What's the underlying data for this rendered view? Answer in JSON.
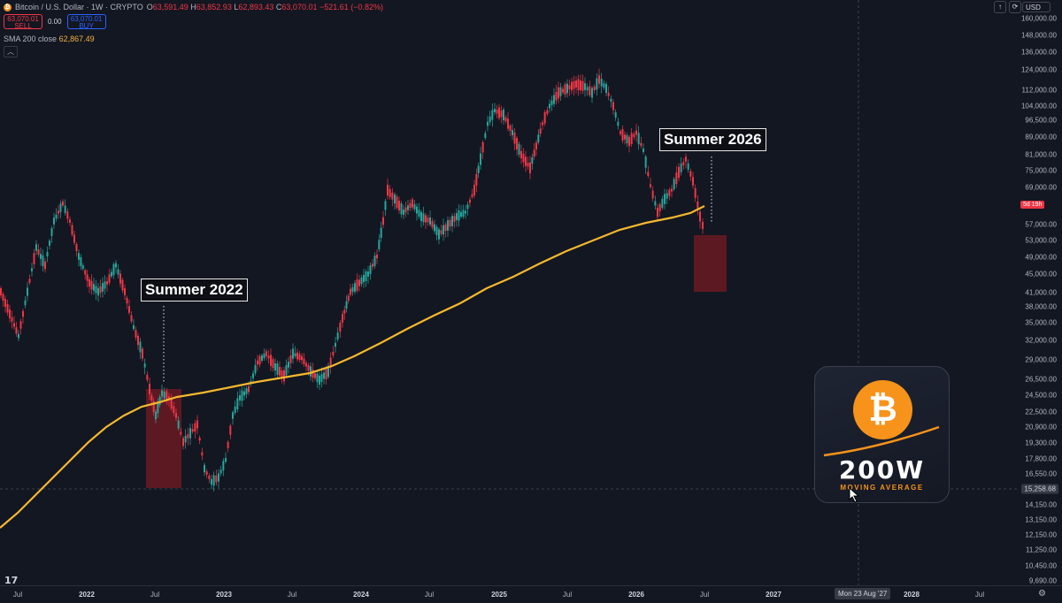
{
  "header": {
    "symbol": "Bitcoin / U.S. Dollar · 1W · CRYPTO",
    "open_key": "O",
    "open": "63,591.49",
    "high_key": "H",
    "high": "63,852.93",
    "low_key": "L",
    "low": "62,893.43",
    "close_key": "C",
    "close": "63,070.01",
    "change": "−521.61 (−0.82%)",
    "sell_price": "63,070.01",
    "sell_label": "SELL",
    "spread": "0.00",
    "buy_price": "63,070.01",
    "buy_label": "BUY",
    "sma_label": "SMA 200 close",
    "sma_value": "62,867.49",
    "collapse_icon": "chevron-up-icon"
  },
  "annotations": {
    "summer_2022": "Summer 2022",
    "summer_2026": "Summer 2026"
  },
  "logo": {
    "symbol": "₿",
    "title": "200W",
    "subtitle": "MOVING AVERAGE"
  },
  "price_axis": {
    "currency": "USD",
    "ticks": [
      "160,000.00",
      "148,000.00",
      "136,000.00",
      "124,000.00",
      "112,000.00",
      "104,000.00",
      "96,500.00",
      "89,000.00",
      "81,000.00",
      "75,000.00",
      "69,000.00",
      "57,000.00",
      "53,000.00",
      "49,000.00",
      "45,000.00",
      "41,000.00",
      "38,000.00",
      "35,000.00",
      "32,000.00",
      "29,000.00",
      "26,500.00",
      "24,500.00",
      "22,500.00",
      "20,900.00",
      "19,300.00",
      "17,800.00",
      "16,550.00",
      "14,150.00",
      "13,150.00",
      "12,150.00",
      "11,250.00",
      "10,450.00",
      "9,690.00"
    ],
    "countdown_label": "5d 19h",
    "crosshair_price": "15,258.68"
  },
  "time_axis": {
    "labels": [
      "Jul",
      "2022",
      "Jul",
      "2023",
      "Jul",
      "2024",
      "Jul",
      "2025",
      "Jul",
      "2026",
      "Jul",
      "2027",
      "2028",
      "Jul"
    ],
    "hover_label": "Mon 23 Aug '27"
  },
  "colors": {
    "background": "#131722",
    "up": "#26a69a",
    "down": "#f23645",
    "sma": "#f5b82e",
    "zone": "#6b1a22",
    "bitcoin_orange": "#f7931a"
  }
}
